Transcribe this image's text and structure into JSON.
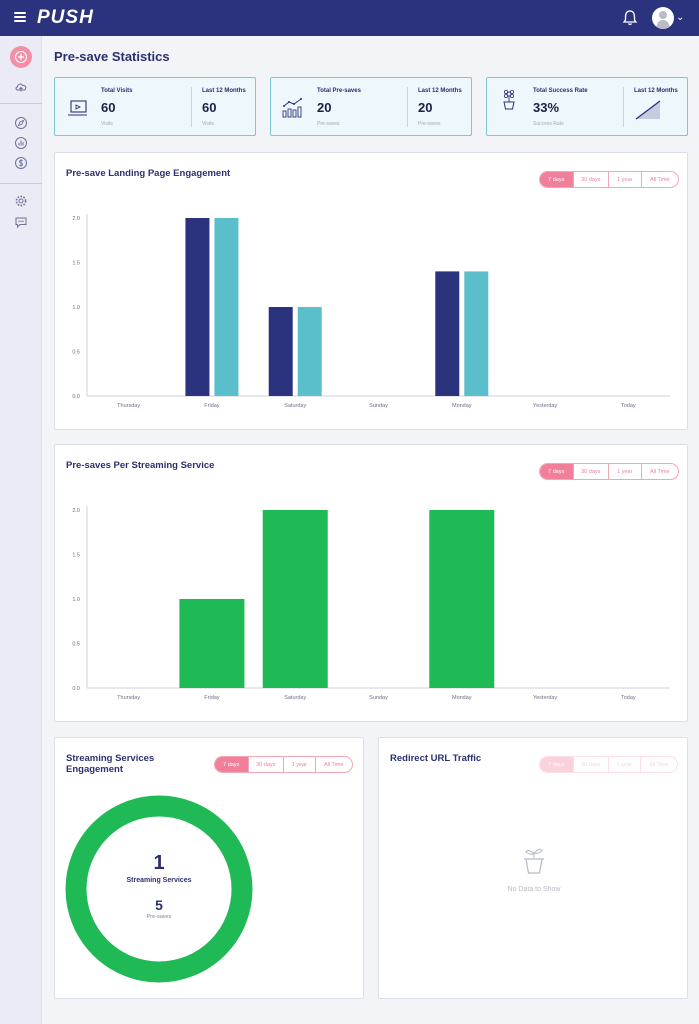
{
  "app": {
    "logo": "PUSH"
  },
  "header": {
    "icons": [
      "menu-icon",
      "bell-icon",
      "avatar",
      "chevron-down-icon"
    ]
  },
  "sidebar": {
    "icons": [
      "add-icon",
      "cloud-upload-icon",
      "compass-icon",
      "analytics-icon",
      "dollar-icon",
      "settings-icon",
      "chat-icon"
    ]
  },
  "page": {
    "title": "Pre-save Statistics"
  },
  "stats": [
    {
      "label": "Total Visits",
      "value": "60",
      "sub": "Visits",
      "period_label": "Last 12 Months",
      "period_value": "60",
      "period_sub": "Visits",
      "icon": "laptop-icon"
    },
    {
      "label": "Total Pre-saves",
      "value": "20",
      "sub": "Pre-saves",
      "period_label": "Last 12 Months",
      "period_value": "20",
      "period_sub": "Pre-saves",
      "icon": "growth-chart-icon"
    },
    {
      "label": "Total Success Rate",
      "value": "33%",
      "sub": "Success Rate",
      "period_label": "Last 12 Months",
      "period_value": "",
      "period_sub": "",
      "icon": "flower-pot-icon"
    }
  ],
  "range_options": [
    "7 days",
    "30 days",
    "1 year",
    "All Time"
  ],
  "engagement": {
    "title": "Pre-save Landing Page Engagement"
  },
  "streaming": {
    "title": "Pre-saves Per Streaming Service"
  },
  "services": {
    "title": "Streaming Services Engagement",
    "count": "1",
    "count_label": "Streaming Services",
    "presaves": "5",
    "presaves_label": "Pre-saves"
  },
  "redirect": {
    "title": "Redirect URL Traffic",
    "empty_text": "No Data to Show"
  },
  "colors": {
    "navy": "#2b327e",
    "teal": "#5abfcb",
    "green": "#1fba55",
    "pink": "#f07f9a"
  },
  "chart_data": [
    {
      "type": "bar",
      "categories": [
        "Thursday",
        "Friday",
        "Saturday",
        "Sunday",
        "Monday",
        "Yesterday",
        "Today"
      ],
      "series": [
        {
          "values": [
            0,
            2,
            1,
            0,
            1.4,
            0,
            0
          ],
          "color": "#2b327e"
        },
        {
          "values": [
            0,
            2,
            1,
            0,
            1.4,
            0,
            0
          ],
          "color": "#5abfcb"
        }
      ],
      "yticks": [
        "0.0",
        "0.5",
        "1.0",
        "1.5",
        "2.0"
      ],
      "ylim": [
        0,
        2
      ]
    },
    {
      "type": "bar",
      "categories": [
        "Thursday",
        "Friday",
        "Saturday",
        "Sunday",
        "Monday",
        "Yesterday",
        "Today"
      ],
      "series": [
        {
          "values": [
            0,
            1,
            2,
            0,
            2,
            0,
            0
          ],
          "color": "#1fba55"
        }
      ],
      "yticks": [
        "0.0",
        "0.5",
        "1.0",
        "1.5",
        "2.0"
      ],
      "ylim": [
        0,
        2
      ]
    },
    {
      "type": "pie",
      "categories": [
        ""
      ],
      "values": [
        5
      ],
      "colors": [
        "#1fba55"
      ]
    }
  ]
}
